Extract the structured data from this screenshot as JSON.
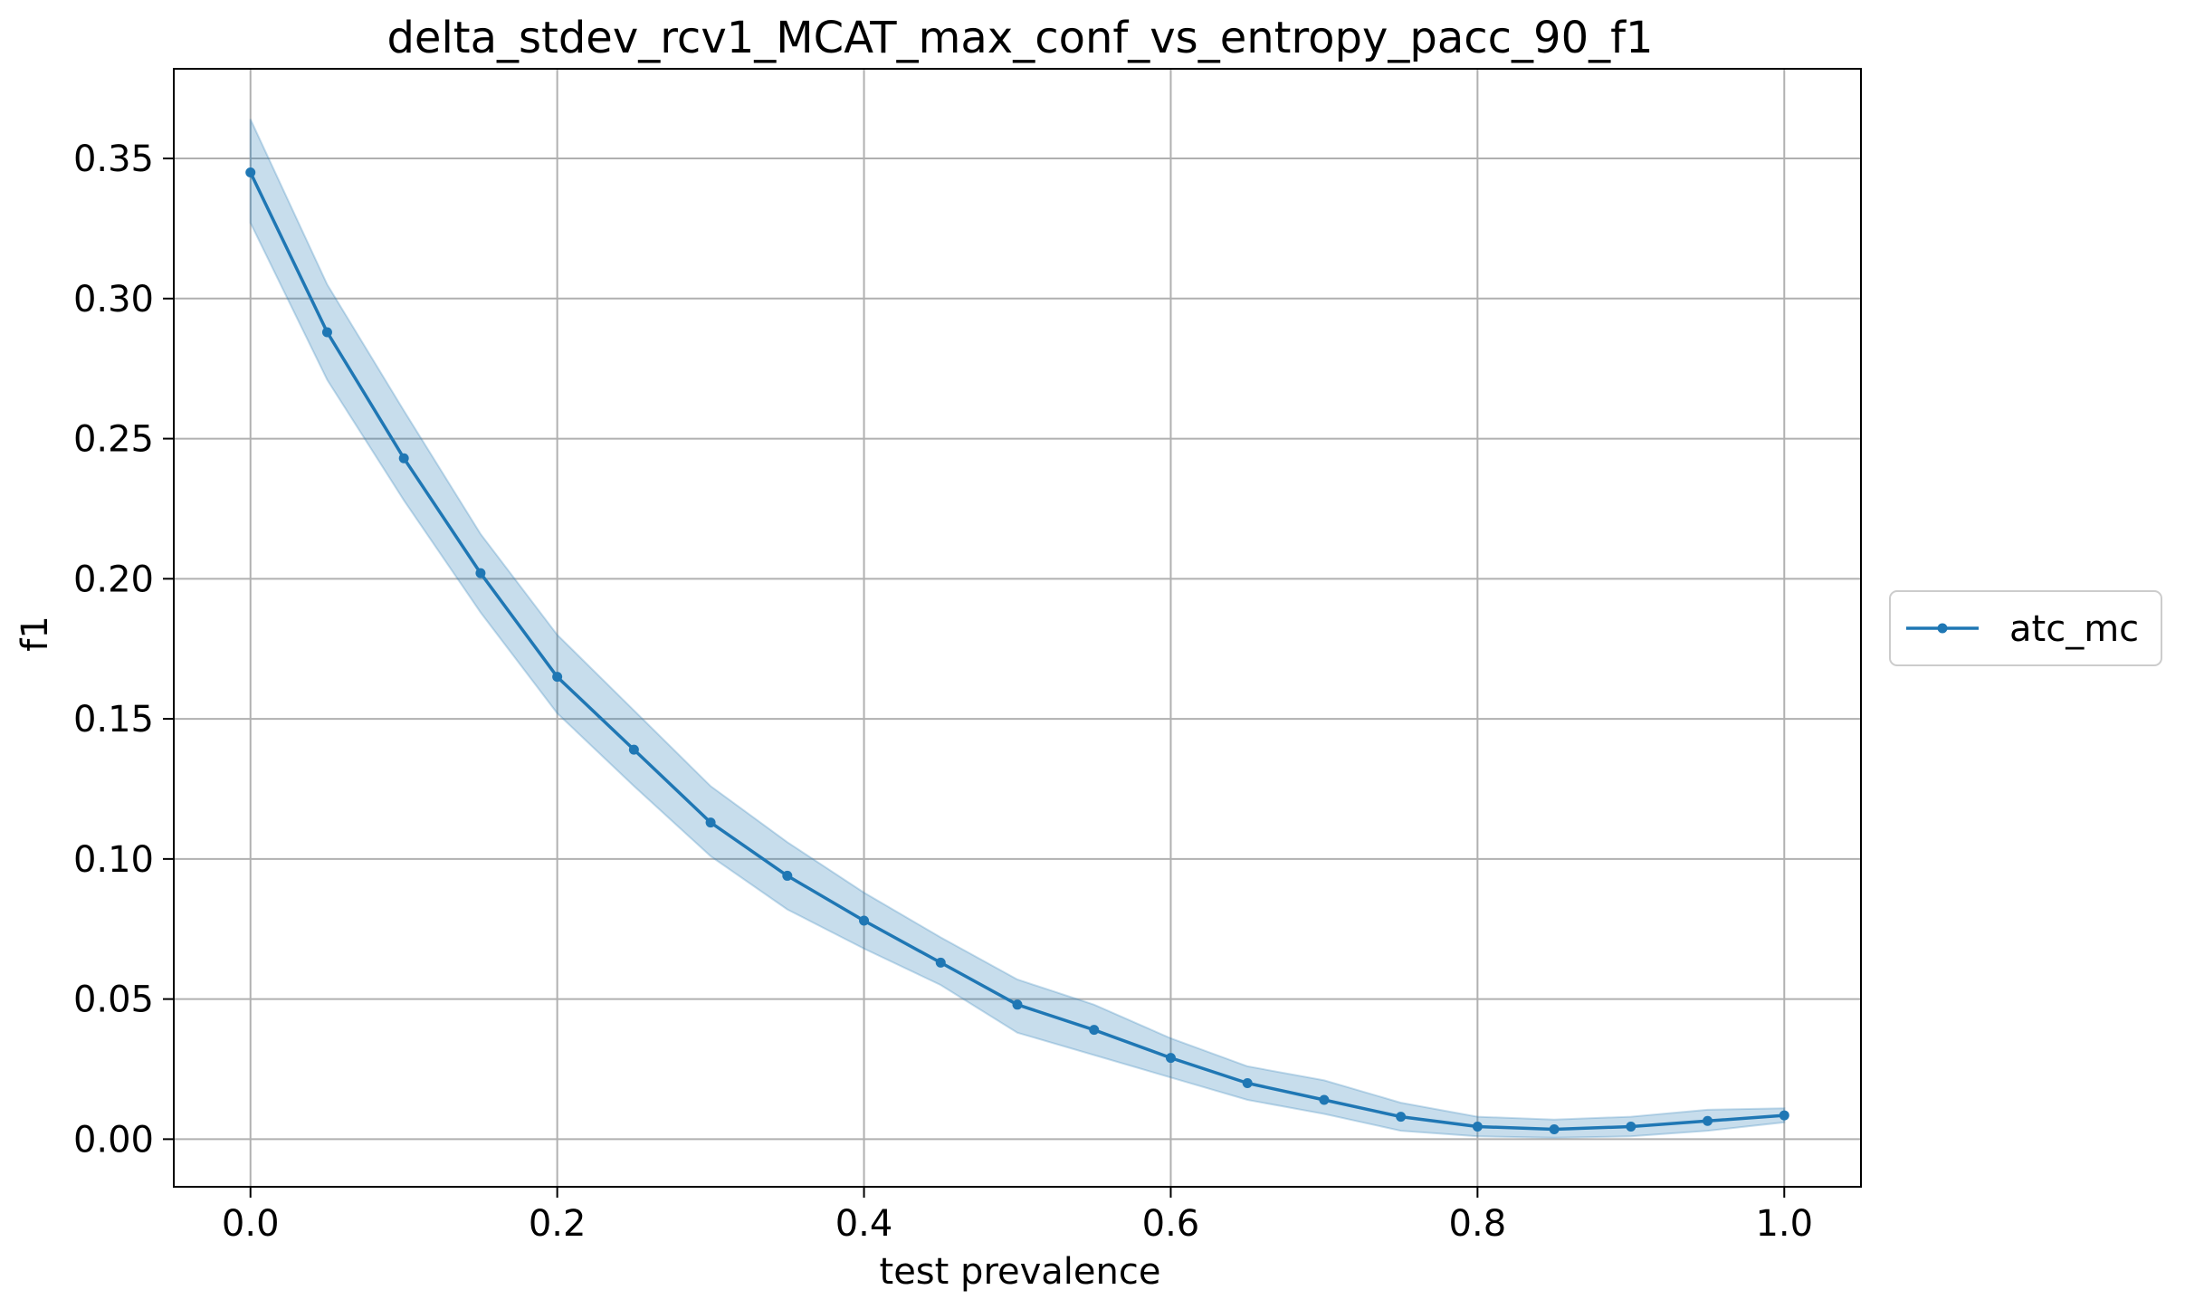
{
  "chart_data": {
    "type": "line",
    "title": "delta_stdev_rcv1_MCAT_max_conf_vs_entropy_pacc_90_f1",
    "xlabel": "test prevalence",
    "ylabel": "f1",
    "xlim": [
      -0.05,
      1.05
    ],
    "ylim": [
      -0.017,
      0.382
    ],
    "xticks": [
      0.0,
      0.2,
      0.4,
      0.6,
      0.8,
      1.0
    ],
    "xtick_labels": [
      "0.0",
      "0.2",
      "0.4",
      "0.6",
      "0.8",
      "1.0"
    ],
    "yticks": [
      0.0,
      0.05,
      0.1,
      0.15,
      0.2,
      0.25,
      0.3,
      0.35
    ],
    "ytick_labels": [
      "0.00",
      "0.05",
      "0.10",
      "0.15",
      "0.20",
      "0.25",
      "0.30",
      "0.35"
    ],
    "grid": true,
    "legend_position": "outside-right",
    "x": [
      0.0,
      0.05,
      0.1,
      0.15,
      0.2,
      0.25,
      0.3,
      0.35,
      0.4,
      0.45,
      0.5,
      0.55,
      0.6,
      0.65,
      0.7,
      0.75,
      0.8,
      0.85,
      0.9,
      0.95,
      1.0
    ],
    "series": [
      {
        "name": "atc_mc",
        "color": "#1f77b4",
        "values": [
          0.345,
          0.288,
          0.243,
          0.202,
          0.165,
          0.139,
          0.113,
          0.094,
          0.078,
          0.063,
          0.048,
          0.039,
          0.029,
          0.02,
          0.014,
          0.008,
          0.0045,
          0.0035,
          0.0045,
          0.0065,
          0.0085
        ],
        "lower": [
          0.327,
          0.271,
          0.228,
          0.188,
          0.152,
          0.126,
          0.101,
          0.082,
          0.068,
          0.055,
          0.038,
          0.03,
          0.022,
          0.014,
          0.009,
          0.003,
          0.001,
          0.0005,
          0.001,
          0.003,
          0.006
        ],
        "upper": [
          0.364,
          0.305,
          0.26,
          0.216,
          0.18,
          0.153,
          0.126,
          0.106,
          0.088,
          0.072,
          0.057,
          0.048,
          0.036,
          0.026,
          0.021,
          0.013,
          0.008,
          0.007,
          0.008,
          0.0105,
          0.011
        ]
      }
    ]
  }
}
